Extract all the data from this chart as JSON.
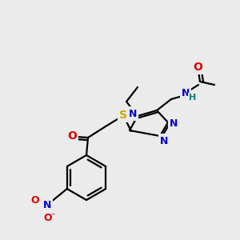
{
  "background_color": "#ebebeb",
  "bond_color": "#000000",
  "atom_colors": {
    "O": "#dd0000",
    "N": "#0000cc",
    "S": "#ccaa00",
    "H": "#008080",
    "C": "#000000"
  },
  "figsize": [
    3.0,
    3.0
  ],
  "dpi": 100,
  "bond_lw": 1.6
}
